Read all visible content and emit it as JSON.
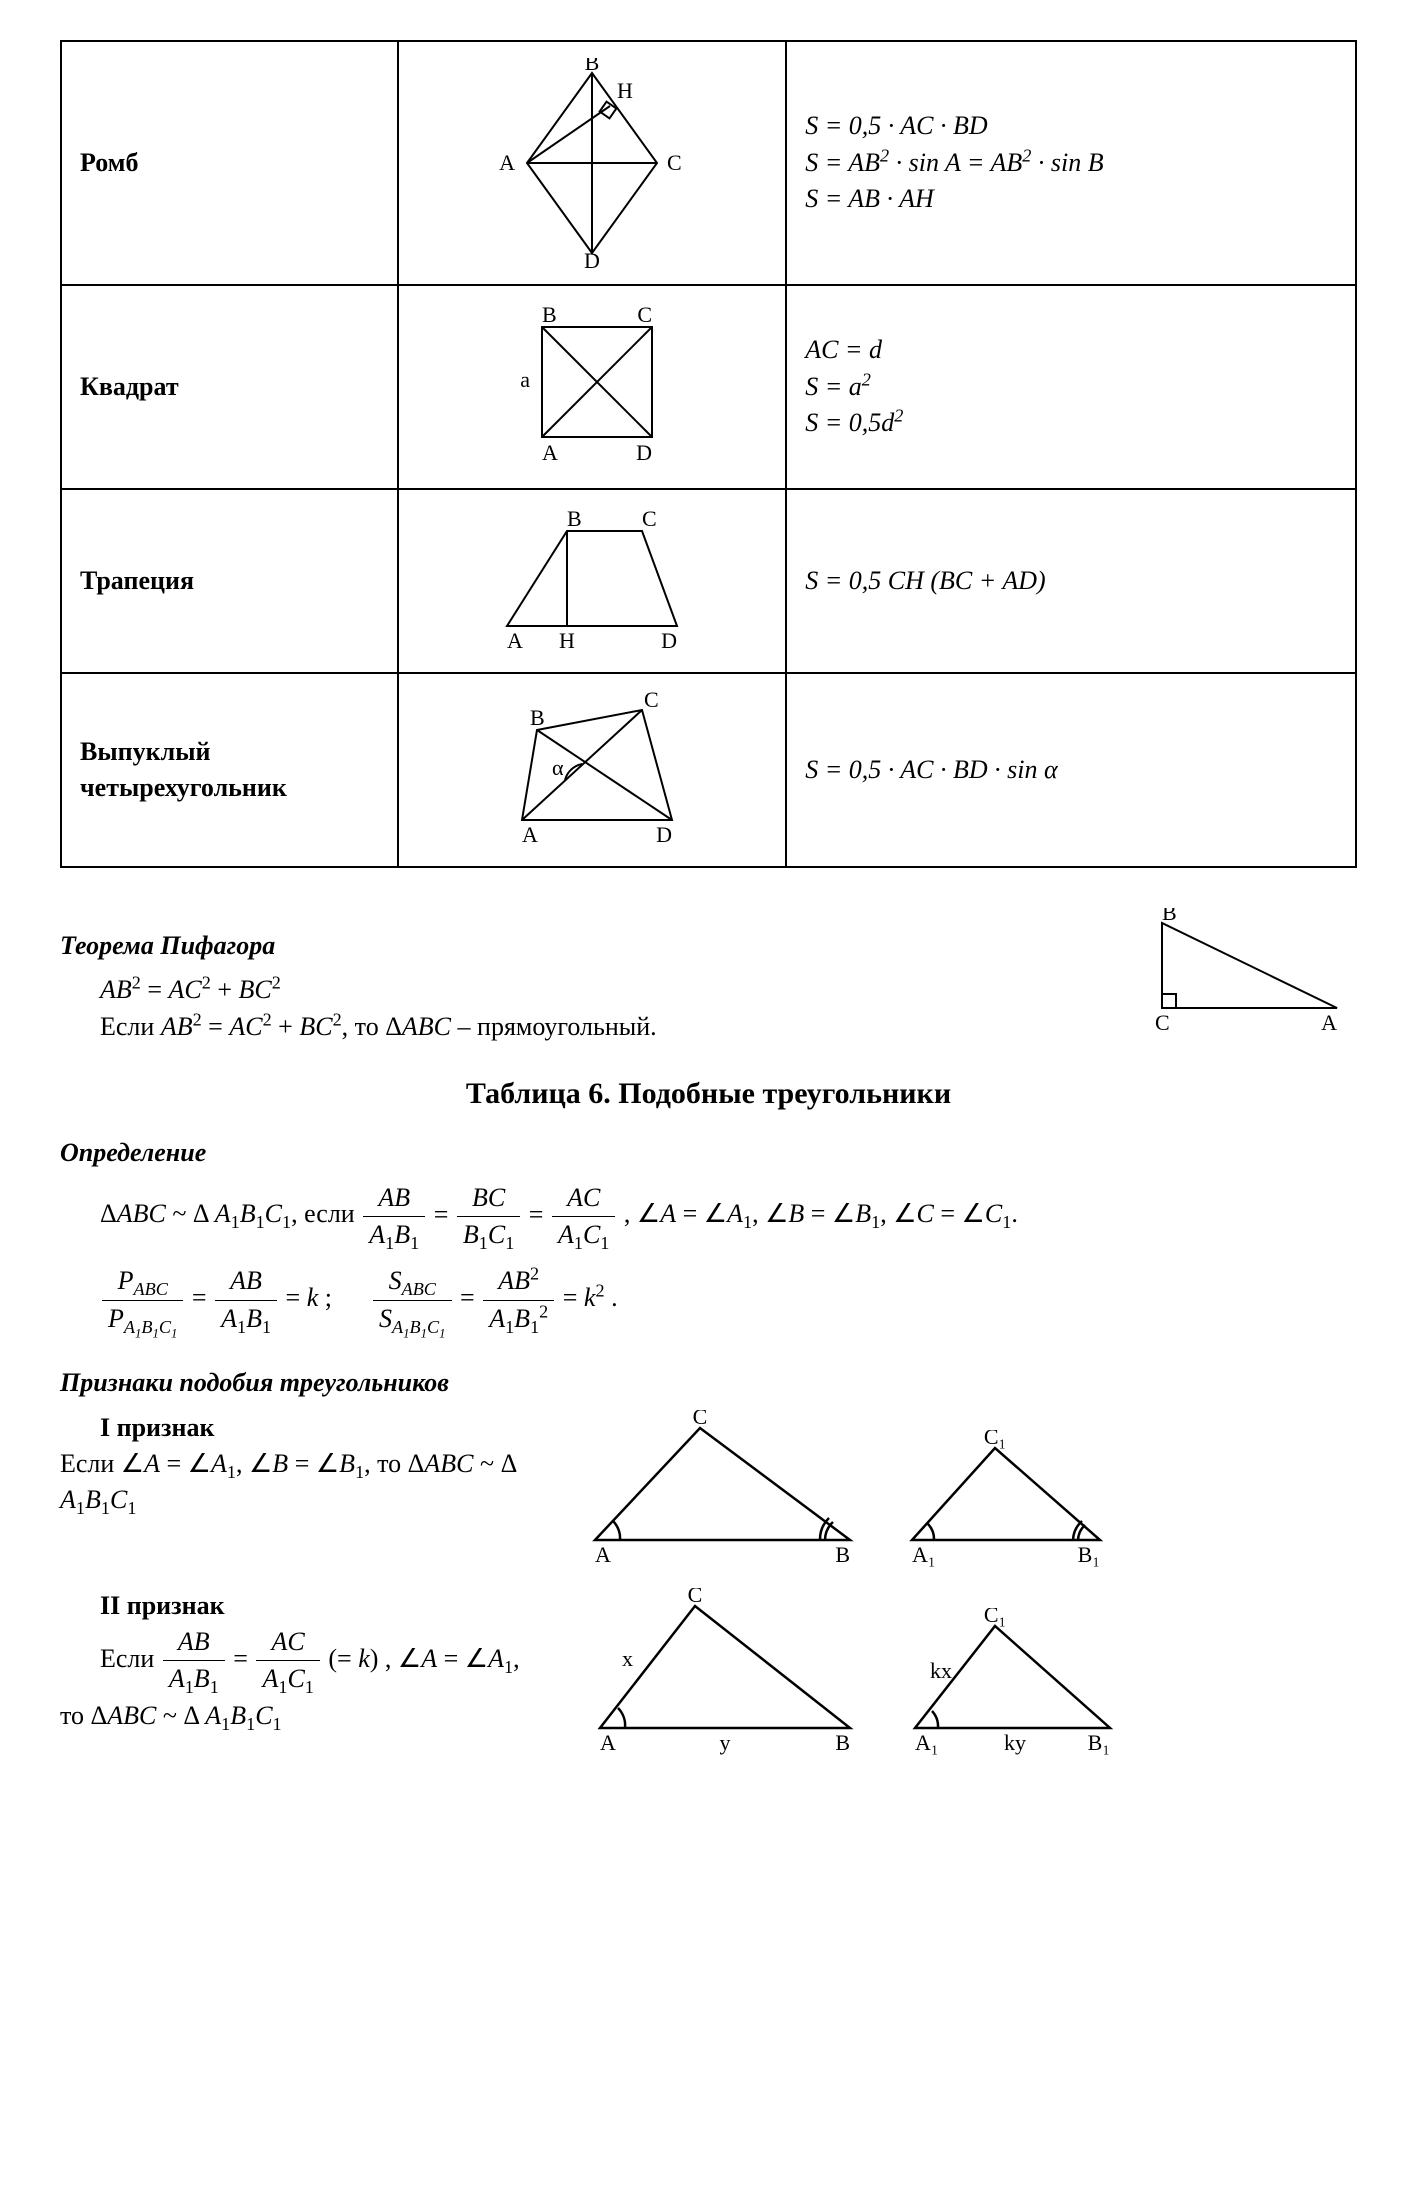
{
  "colors": {
    "ink": "#000000",
    "bg": "#ffffff",
    "stroke": "#000000"
  },
  "stroke_width": 2,
  "label_fontsize": 22,
  "table": {
    "rows": [
      {
        "name": "Ромб",
        "formulas": [
          "S = 0,5 · <i>AC</i> · <i>BD</i>",
          "S = <i>AB</i><sup>2</sup> · sin <i>A</i> = <i>AB</i><sup>2</sup> · sin <i>B</i>",
          "S = <i>AB</i> · <i>AH</i>"
        ],
        "fig": {
          "type": "rhombus",
          "labels": {
            "A": "A",
            "B": "B",
            "C": "C",
            "D": "D",
            "H": "H"
          }
        }
      },
      {
        "name": "Квадрат",
        "formulas": [
          "<i>AC</i> = <i>d</i>",
          "<i>S</i> = <i>a</i><sup>2</sup>",
          "<i>S</i> = 0,5<i>d</i><sup>2</sup>"
        ],
        "fig": {
          "type": "square",
          "labels": {
            "A": "A",
            "B": "B",
            "C": "C",
            "D": "D",
            "a": "a"
          }
        }
      },
      {
        "name": "Трапеция",
        "formulas": [
          "S = 0,5 <i>CH</i> (<i>BC</i> + <i>AD</i>)"
        ],
        "fig": {
          "type": "trapezoid",
          "labels": {
            "A": "A",
            "B": "B",
            "C": "C",
            "D": "D",
            "H": "H"
          }
        }
      },
      {
        "name": "Выпуклый четырехугольник",
        "formulas": [
          "S = 0,5 · <i>AC</i> · <i>BD</i> · sin α"
        ],
        "fig": {
          "type": "quad",
          "labels": {
            "A": "A",
            "B": "B",
            "C": "C",
            "D": "D",
            "alpha": "α"
          }
        }
      }
    ]
  },
  "pythag": {
    "heading": "Теорема Пифагора",
    "line1": "<i>AB</i><sup>2</sup> = <i>AC</i><sup>2</sup> + <i>BC</i><sup>2</sup>",
    "line2_prefix": "Если ",
    "line2_mid": "<i>AB</i><sup>2</sup> = <i>AC</i><sup>2</sup> + <i>BC</i><sup>2</sup>",
    "line2_suffix": ", то Δ<i>ABC</i> – прямоугольный.",
    "fig_labels": {
      "A": "A",
      "B": "B",
      "C": "C"
    }
  },
  "table6_heading": "Таблица 6. Подобные треугольники",
  "definition": {
    "heading": "Определение",
    "line1_prefix": "Δ<i>ABC</i> ~ Δ <i>A</i><sub>1</sub><i>B</i><sub>1</sub><i>C</i><sub>1</sub>, если ",
    "frac1": {
      "num": "<i>AB</i>",
      "den": "<i>A</i><sub>1</sub><i>B</i><sub>1</sub>"
    },
    "frac2": {
      "num": "<i>BC</i>",
      "den": "<i>B</i><sub>1</sub><i>C</i><sub>1</sub>"
    },
    "frac3": {
      "num": "<i>AC</i>",
      "den": "<i>A</i><sub>1</sub><i>C</i><sub>1</sub>"
    },
    "line1_suffix": " , ∠<i>A</i> = ∠<i>A</i><sub>1</sub>, ∠<i>B</i> = ∠<i>B</i><sub>1</sub>, ∠<i>C</i> = ∠<i>C</i><sub>1</sub>.",
    "fracP": {
      "num": "<i>P<sub>ABC</sub></i>",
      "den": "<i>P<sub>A<sub>1</sub>B<sub>1</sub>C<sub>1</sub></sub></i>"
    },
    "fracAB": {
      "num": "<i>AB</i>",
      "den": "<i>A</i><sub>1</sub><i>B</i><sub>1</sub>"
    },
    "eq_k": " = <i>k</i> ;",
    "fracS": {
      "num": "<i>S<sub>ABC</sub></i>",
      "den": "<i>S<sub>A<sub>1</sub>B<sub>1</sub>C<sub>1</sub></sub></i>"
    },
    "fracAB2": {
      "num": "<i>AB</i><sup>2</sup>",
      "den": "<i>A</i><sub>1</sub><i>B</i><sub>1</sub><sup>2</sup>"
    },
    "eq_k2": " = <i>k</i><sup>2</sup> ."
  },
  "criteria": {
    "heading": "Признаки подобия треугольников",
    "c1": {
      "title": "I признак",
      "text_html": "Если ∠<i>A</i> = ∠<i>A</i><sub>1</sub>, ∠<i>B</i> = ∠<i>B</i><sub>1</sub>, то Δ<i>ABC</i> ~ Δ <i>A</i><sub>1</sub><i>B</i><sub>1</sub><i>C</i><sub>1</sub>",
      "fig_labels": {
        "A": "A",
        "B": "B",
        "C": "C",
        "A1": "A₁",
        "B1": "B₁",
        "C1": "C₁"
      }
    },
    "c2": {
      "title": "II признак",
      "prefix": "Если ",
      "fracL": {
        "num": "<i>AB</i>",
        "den": "<i>A</i><sub>1</sub><i>B</i><sub>1</sub>"
      },
      "fracR": {
        "num": "<i>AC</i>",
        "den": "<i>A</i><sub>1</sub><i>C</i><sub>1</sub>"
      },
      "mid": " (= <i>k</i>) , ∠<i>A</i> = ∠<i>A</i><sub>1</sub>,",
      "suffix": "то Δ<i>ABC</i> ~ Δ <i>A</i><sub>1</sub><i>B</i><sub>1</sub><i>C</i><sub>1</sub>",
      "fig_labels": {
        "A": "A",
        "B": "B",
        "C": "C",
        "A1": "A₁",
        "B1": "B₁",
        "C1": "C₁",
        "x": "x",
        "y": "y",
        "kx": "kx",
        "ky": "ky"
      }
    }
  }
}
